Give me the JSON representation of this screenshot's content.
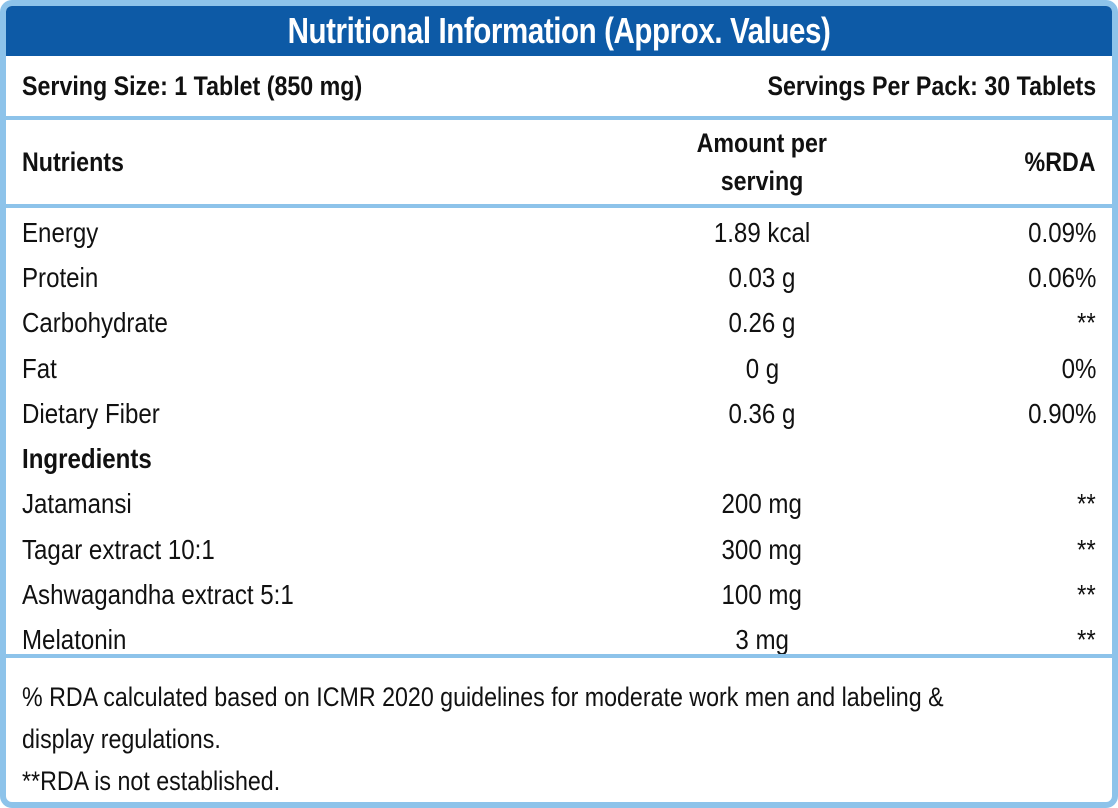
{
  "title": "Nutritional Information (Approx. Values)",
  "serving": {
    "size": "Serving Size: 1 Tablet (850 mg)",
    "per_pack": "Servings Per Pack: 30 Tablets"
  },
  "headers": {
    "nutrients": "Nutrients",
    "amount_line1": "Amount per",
    "amount_line2": "serving",
    "rda": "%RDA"
  },
  "rows": [
    {
      "name": "Energy",
      "amount": "1.89 kcal",
      "rda": "0.09%"
    },
    {
      "name": "Protein",
      "amount": "0.03 g",
      "rda": "0.06%"
    },
    {
      "name": "Carbohydrate",
      "amount": "0.26 g",
      "rda": "**"
    },
    {
      "name": "Fat",
      "amount": "0 g",
      "rda": "0%"
    },
    {
      "name": "Dietary Fiber",
      "amount": "0.36 g",
      "rda": "0.90%"
    },
    {
      "name": "Ingredients",
      "amount": "",
      "rda": ""
    },
    {
      "name": "Jatamansi",
      "amount": "200 mg",
      "rda": "**"
    },
    {
      "name": "Tagar extract 10:1",
      "amount": "300 mg",
      "rda": "**"
    },
    {
      "name": "Ashwagandha extract 5:1",
      "amount": "100 mg",
      "rda": "**"
    },
    {
      "name": "Melatonin",
      "amount": "3 mg",
      "rda": "**"
    }
  ],
  "notes": {
    "line1": "% RDA calculated based on ICMR 2020 guidelines for moderate work men and labeling &",
    "line2": "display regulations.",
    "line3": "**RDA is not established."
  },
  "colors": {
    "title_bg": "#0d5aa6",
    "border": "#8dc3ea"
  }
}
